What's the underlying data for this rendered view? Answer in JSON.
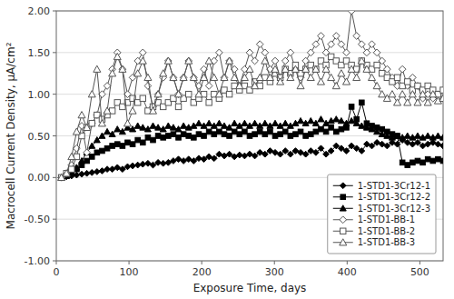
{
  "chart_data": {
    "type": "line",
    "xlabel": "Exposure Time, days",
    "ylabel": "Macrocell Current Density, μA/cm²",
    "xlim": [
      0,
      532
    ],
    "ylim": [
      -1.0,
      2.0
    ],
    "xticks": [
      0,
      100,
      200,
      300,
      400,
      500
    ],
    "yticks": [
      {
        "value": -1.0,
        "label": "-1.00"
      },
      {
        "value": -0.5,
        "label": "-0.50"
      },
      {
        "value": 0.0,
        "label": "0.00"
      },
      {
        "value": 0.5,
        "label": "0.50"
      },
      {
        "value": 1.0,
        "label": "1.00"
      },
      {
        "value": 1.5,
        "label": "1.50"
      },
      {
        "value": 2.0,
        "label": "2.00"
      }
    ],
    "grid": "y",
    "legend": "lower right",
    "x": [
      7,
      14,
      21,
      28,
      35,
      42,
      49,
      56,
      63,
      70,
      77,
      84,
      91,
      98,
      105,
      112,
      119,
      126,
      133,
      140,
      147,
      154,
      161,
      168,
      175,
      182,
      189,
      196,
      203,
      210,
      217,
      224,
      231,
      238,
      245,
      252,
      259,
      266,
      273,
      280,
      287,
      294,
      301,
      308,
      315,
      322,
      329,
      336,
      343,
      350,
      357,
      364,
      371,
      378,
      385,
      392,
      399,
      406,
      413,
      420,
      427,
      434,
      441,
      448,
      455,
      462,
      469,
      476,
      483,
      490,
      497,
      504,
      511,
      518,
      525,
      532
    ],
    "series": [
      {
        "name": "1-STD1-3Cr12-1",
        "color": "#000000",
        "marker": "diamond",
        "values": [
          0.0,
          0.01,
          0.02,
          0.03,
          0.04,
          0.05,
          0.06,
          0.07,
          0.08,
          0.1,
          0.1,
          0.12,
          0.1,
          0.13,
          0.14,
          0.15,
          0.16,
          0.17,
          0.15,
          0.18,
          0.17,
          0.18,
          0.2,
          0.22,
          0.2,
          0.22,
          0.2,
          0.23,
          0.22,
          0.25,
          0.23,
          0.28,
          0.26,
          0.28,
          0.25,
          0.27,
          0.26,
          0.28,
          0.26,
          0.3,
          0.28,
          0.32,
          0.3,
          0.28,
          0.32,
          0.28,
          0.32,
          0.3,
          0.28,
          0.32,
          0.3,
          0.35,
          0.28,
          0.32,
          0.38,
          0.35,
          0.32,
          0.38,
          0.35,
          0.32,
          0.4,
          0.38,
          0.42,
          0.4,
          0.38,
          0.42,
          0.4,
          0.45,
          0.42,
          0.4,
          0.42,
          0.38,
          0.4,
          0.42,
          0.4,
          0.38
        ]
      },
      {
        "name": "1-STD1-3Cr12-2",
        "color": "#000000",
        "marker": "square",
        "values": [
          0.0,
          0.02,
          0.05,
          0.1,
          0.15,
          0.2,
          0.25,
          0.3,
          0.32,
          0.35,
          0.38,
          0.4,
          0.38,
          0.42,
          0.4,
          0.45,
          0.42,
          0.48,
          0.45,
          0.5,
          0.48,
          0.5,
          0.52,
          0.48,
          0.52,
          0.5,
          0.48,
          0.52,
          0.5,
          0.55,
          0.52,
          0.55,
          0.52,
          0.5,
          0.55,
          0.52,
          0.55,
          0.5,
          0.52,
          0.55,
          0.52,
          0.55,
          0.5,
          0.52,
          0.55,
          0.5,
          0.52,
          0.55,
          0.5,
          0.52,
          0.55,
          0.58,
          0.55,
          0.6,
          0.55,
          0.58,
          0.6,
          0.85,
          0.7,
          0.9,
          0.65,
          0.62,
          0.6,
          0.58,
          0.55,
          0.52,
          0.5,
          0.18,
          0.15,
          0.18,
          0.2,
          0.18,
          0.22,
          0.2,
          0.22,
          0.2
        ]
      },
      {
        "name": "1-STD1-3Cr12-3",
        "color": "#000000",
        "marker": "triangle",
        "values": [
          0.0,
          0.02,
          0.05,
          0.12,
          0.2,
          0.3,
          0.38,
          0.45,
          0.5,
          0.55,
          0.52,
          0.58,
          0.55,
          0.6,
          0.58,
          0.62,
          0.6,
          0.58,
          0.62,
          0.6,
          0.58,
          0.62,
          0.6,
          0.58,
          0.62,
          0.6,
          0.62,
          0.65,
          0.62,
          0.65,
          0.62,
          0.65,
          0.62,
          0.6,
          0.65,
          0.62,
          0.65,
          0.62,
          0.65,
          0.62,
          0.65,
          0.62,
          0.65,
          0.62,
          0.65,
          0.62,
          0.65,
          0.68,
          0.65,
          0.68,
          0.65,
          0.7,
          0.65,
          0.68,
          0.7,
          0.68,
          0.65,
          0.68,
          0.65,
          0.62,
          0.6,
          0.58,
          0.55,
          0.52,
          0.5,
          0.48,
          0.5,
          0.48,
          0.5,
          0.48,
          0.5,
          0.48,
          0.5,
          0.48,
          0.5,
          0.48
        ]
      },
      {
        "name": "1-STD1-BB-1",
        "color": "#555555",
        "marker": "diamond-open",
        "values": [
          0.0,
          0.05,
          0.15,
          0.35,
          0.62,
          0.3,
          0.65,
          0.75,
          1.0,
          1.1,
          1.3,
          1.5,
          1.3,
          1.0,
          1.2,
          1.4,
          1.5,
          1.1,
          0.85,
          1.0,
          1.2,
          1.4,
          1.2,
          1.0,
          1.2,
          1.4,
          1.2,
          1.1,
          1.3,
          1.1,
          1.4,
          1.5,
          1.2,
          1.4,
          1.3,
          1.1,
          1.3,
          1.5,
          1.4,
          1.6,
          1.5,
          1.3,
          1.4,
          1.2,
          1.4,
          1.5,
          1.3,
          1.2,
          1.4,
          1.5,
          1.6,
          1.7,
          1.5,
          1.6,
          1.7,
          1.6,
          1.5,
          2.0,
          1.7,
          1.6,
          1.5,
          1.6,
          1.5,
          1.4,
          1.3,
          1.2,
          1.1,
          1.3,
          1.1,
          1.2,
          1.1,
          0.95,
          1.0,
          0.95,
          1.0,
          0.95
        ]
      },
      {
        "name": "1-STD1-BB-2",
        "color": "#555555",
        "marker": "square-open",
        "values": [
          0.0,
          0.05,
          0.1,
          0.25,
          0.5,
          0.6,
          0.65,
          0.75,
          0.7,
          0.75,
          0.8,
          0.9,
          0.85,
          0.9,
          0.95,
          0.9,
          0.95,
          0.8,
          0.85,
          0.9,
          0.85,
          0.9,
          0.95,
          0.85,
          0.95,
          1.0,
          0.9,
          0.95,
          1.0,
          0.9,
          1.0,
          0.95,
          1.05,
          1.0,
          1.1,
          1.05,
          1.1,
          1.05,
          1.15,
          1.1,
          1.2,
          1.15,
          1.25,
          1.2,
          1.3,
          1.25,
          1.35,
          1.25,
          1.3,
          1.35,
          1.3,
          1.4,
          1.35,
          1.45,
          1.4,
          1.35,
          1.4,
          1.35,
          1.3,
          1.4,
          1.35,
          1.3,
          1.35,
          1.25,
          1.2,
          1.15,
          1.2,
          1.1,
          1.15,
          1.05,
          1.1,
          1.05,
          1.1,
          1.05,
          1.0,
          1.05
        ]
      },
      {
        "name": "1-STD1-BB-3",
        "color": "#555555",
        "marker": "triangle-open",
        "values": [
          0.0,
          0.05,
          0.25,
          0.55,
          0.75,
          0.6,
          1.0,
          1.3,
          0.65,
          0.8,
          1.25,
          1.45,
          1.3,
          0.65,
          0.8,
          1.25,
          1.4,
          1.2,
          0.8,
          1.0,
          1.25,
          1.4,
          1.2,
          1.0,
          1.2,
          1.4,
          1.2,
          1.0,
          1.2,
          1.4,
          1.2,
          1.0,
          1.2,
          1.4,
          1.2,
          1.1,
          1.2,
          1.3,
          1.1,
          1.2,
          1.4,
          1.2,
          1.3,
          1.15,
          1.3,
          1.2,
          1.3,
          1.1,
          1.3,
          1.2,
          1.3,
          1.15,
          1.3,
          1.2,
          1.1,
          1.25,
          1.15,
          1.3,
          1.2,
          1.4,
          1.3,
          1.2,
          1.1,
          1.0,
          0.95,
          1.0,
          0.9,
          1.0,
          0.9,
          1.0,
          0.9,
          1.0,
          0.9,
          1.0,
          0.92,
          0.95
        ]
      }
    ]
  }
}
